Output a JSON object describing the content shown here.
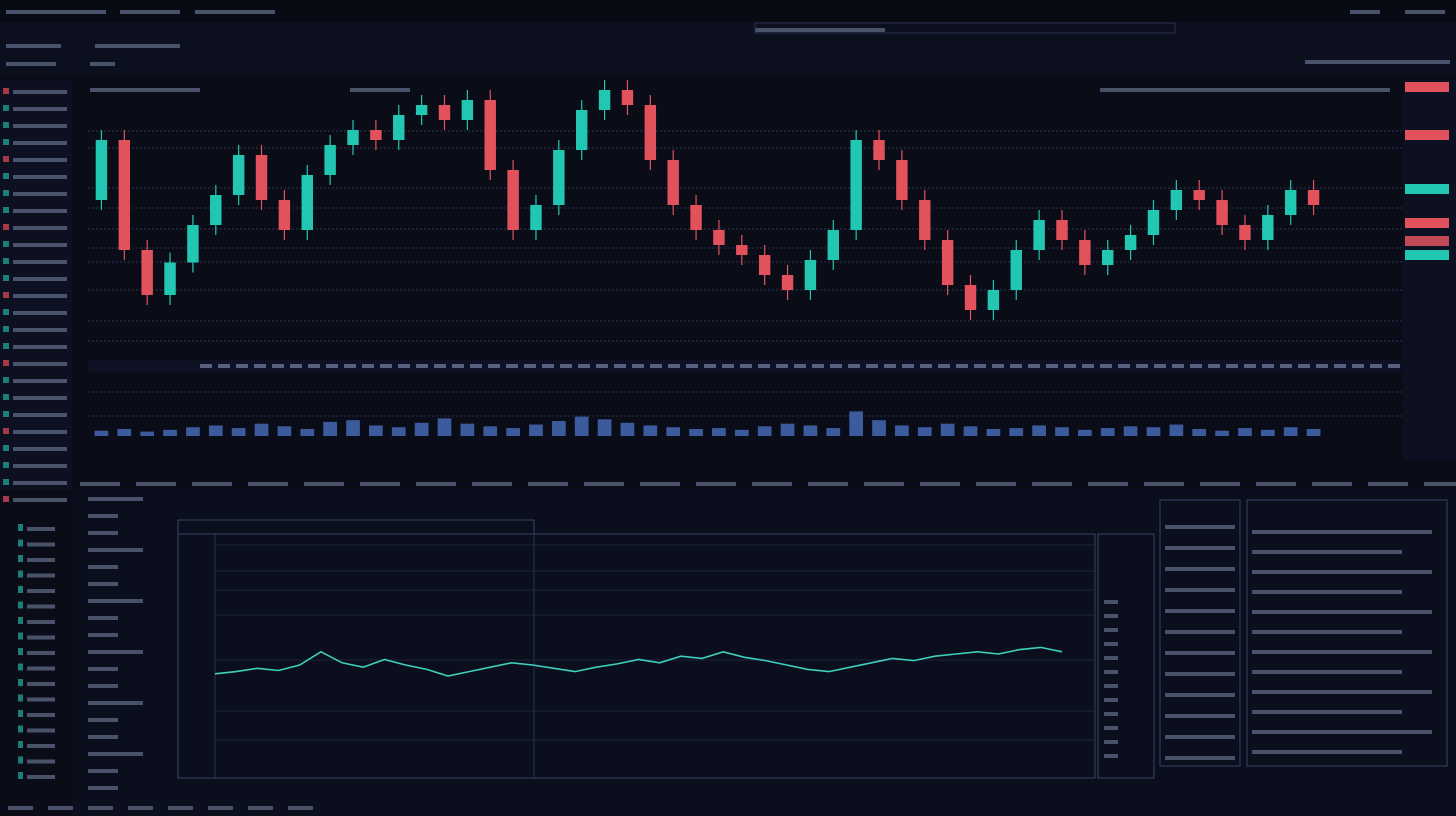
{
  "chart_data": [
    {
      "type": "candlestick",
      "up_color": "#22c7b2",
      "down_color": "#e2525c",
      "ylim": [
        0,
        110
      ],
      "open": [
        60,
        84,
        40,
        22,
        35,
        50,
        62,
        78,
        60,
        48,
        70,
        82,
        88,
        84,
        94,
        98,
        92,
        100,
        72,
        48,
        58,
        80,
        96,
        104,
        98,
        76,
        58,
        48,
        42,
        38,
        30,
        24,
        36,
        48,
        84,
        76,
        60,
        44,
        26,
        16,
        24,
        40,
        52,
        44,
        34,
        40,
        46,
        56,
        64,
        60,
        50,
        44,
        54,
        64
      ],
      "high": [
        88,
        88,
        44,
        39,
        54,
        66,
        82,
        82,
        64,
        74,
        86,
        92,
        92,
        98,
        102,
        102,
        104,
        104,
        76,
        62,
        84,
        100,
        108,
        108,
        102,
        80,
        62,
        52,
        46,
        42,
        34,
        40,
        52,
        88,
        88,
        80,
        64,
        48,
        30,
        28,
        44,
        56,
        56,
        48,
        44,
        50,
        60,
        68,
        68,
        64,
        54,
        58,
        68,
        68
      ],
      "low": [
        56,
        36,
        18,
        18,
        31,
        46,
        58,
        56,
        44,
        44,
        66,
        78,
        80,
        80,
        90,
        88,
        88,
        68,
        44,
        44,
        54,
        76,
        92,
        94,
        72,
        54,
        44,
        38,
        34,
        26,
        20,
        20,
        32,
        44,
        72,
        56,
        40,
        22,
        12,
        12,
        20,
        36,
        40,
        30,
        30,
        36,
        42,
        52,
        56,
        46,
        40,
        40,
        50,
        54
      ],
      "close": [
        84,
        40,
        22,
        35,
        50,
        62,
        78,
        60,
        48,
        70,
        82,
        88,
        84,
        94,
        98,
        92,
        100,
        72,
        48,
        58,
        80,
        96,
        104,
        98,
        76,
        58,
        48,
        42,
        38,
        30,
        24,
        36,
        48,
        84,
        76,
        60,
        44,
        26,
        16,
        24,
        40,
        52,
        44,
        34,
        40,
        46,
        56,
        64,
        60,
        50,
        44,
        54,
        64,
        58
      ]
    },
    {
      "type": "bar",
      "color": "#3b5b9c",
      "ylim": [
        0,
        50
      ],
      "values": [
        6,
        8,
        5,
        7,
        10,
        12,
        9,
        14,
        11,
        8,
        16,
        18,
        12,
        10,
        15,
        20,
        14,
        11,
        9,
        13,
        17,
        22,
        19,
        15,
        12,
        10,
        8,
        9,
        7,
        11,
        14,
        12,
        9,
        28,
        18,
        12,
        10,
        14,
        11,
        8,
        9,
        12,
        10,
        7,
        9,
        11,
        10,
        13,
        8,
        6,
        9,
        7,
        10,
        8
      ]
    },
    {
      "type": "line",
      "color": "#3fcfbc",
      "ylim": [
        0,
        100
      ],
      "values": [
        42,
        44,
        47,
        45,
        50,
        62,
        52,
        48,
        55,
        50,
        46,
        40,
        44,
        48,
        52,
        50,
        47,
        44,
        48,
        51,
        55,
        52,
        58,
        56,
        62,
        57,
        54,
        50,
        46,
        44,
        48,
        52,
        56,
        54,
        58,
        60,
        62,
        60,
        64,
        66,
        62
      ]
    }
  ]
}
